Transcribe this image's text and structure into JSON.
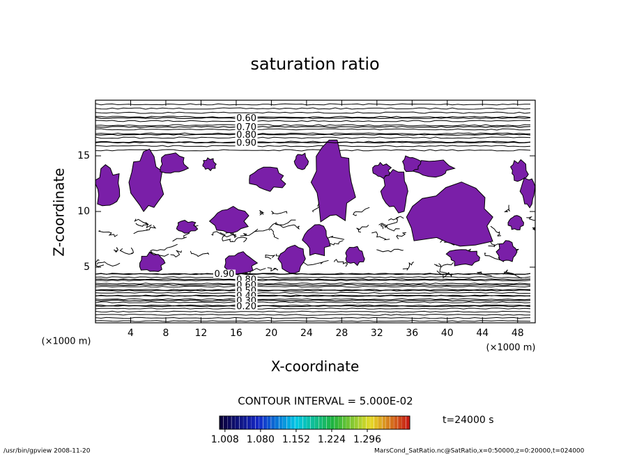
{
  "chart_data": {
    "type": "contour",
    "title": "saturation ratio",
    "xlabel": "X-coordinate",
    "ylabel": "Z-coordinate",
    "x_unit": "(×1000 m)",
    "y_unit": "(×1000 m)",
    "xlim": [
      0,
      50
    ],
    "ylim": [
      0,
      20
    ],
    "xticks": [
      4,
      8,
      12,
      16,
      20,
      24,
      28,
      32,
      36,
      40,
      44,
      48
    ],
    "yticks": [
      5,
      10,
      15
    ],
    "fill_color": "#7a1fa8",
    "contours": [
      {
        "level": {
          "value": 0.6,
          "label": "0.60"
        },
        "x": 17,
        "z": 18.4
      },
      {
        "level": {
          "value": 0.7,
          "label": "0.70"
        },
        "x": 17,
        "z": 17.6
      },
      {
        "level": {
          "value": 0.8,
          "label": "0.80"
        },
        "x": 17,
        "z": 16.9
      },
      {
        "level": {
          "value": 0.9,
          "label": "0.90"
        },
        "x": 17,
        "z": 16.2
      },
      {
        "level": {
          "value": 0.9,
          "label": "0.90"
        },
        "x": 14.5,
        "z": 4.4
      },
      {
        "level": {
          "value": 0.8,
          "label": "0.80"
        },
        "x": 17,
        "z": 3.9
      },
      {
        "level": {
          "value": 0.6,
          "label": "0.60"
        },
        "x": 17,
        "z": 3.4
      },
      {
        "level": {
          "value": 0.5,
          "label": "0.50"
        },
        "x": 17,
        "z": 2.9
      },
      {
        "level": {
          "value": 0.4,
          "label": "0.40"
        },
        "x": 17,
        "z": 2.45
      },
      {
        "level": {
          "value": 0.3,
          "label": "0.30"
        },
        "x": 17,
        "z": 2.0
      },
      {
        "level": {
          "value": 0.2,
          "label": "0.20"
        },
        "x": 17,
        "z": 1.5
      }
    ],
    "contour_interval_label": "CONTOUR INTERVAL = 5.000E-02",
    "time_label": "t=24000 s",
    "colorbar_lim": [
      0.997,
      1.382
    ],
    "colorbar_ticks": [
      1.008,
      1.08,
      1.152,
      1.224,
      1.296
    ],
    "colorbar_tick_labels": [
      "1.008",
      "1.080",
      "1.152",
      "1.224",
      "1.296"
    ],
    "footer_left": "/usr/bin/gpview   2008-11-20",
    "footer_right": "MarsCond_SatRatio.nc@SatRatio,x=0:50000,z=0:20000,t=024000"
  }
}
